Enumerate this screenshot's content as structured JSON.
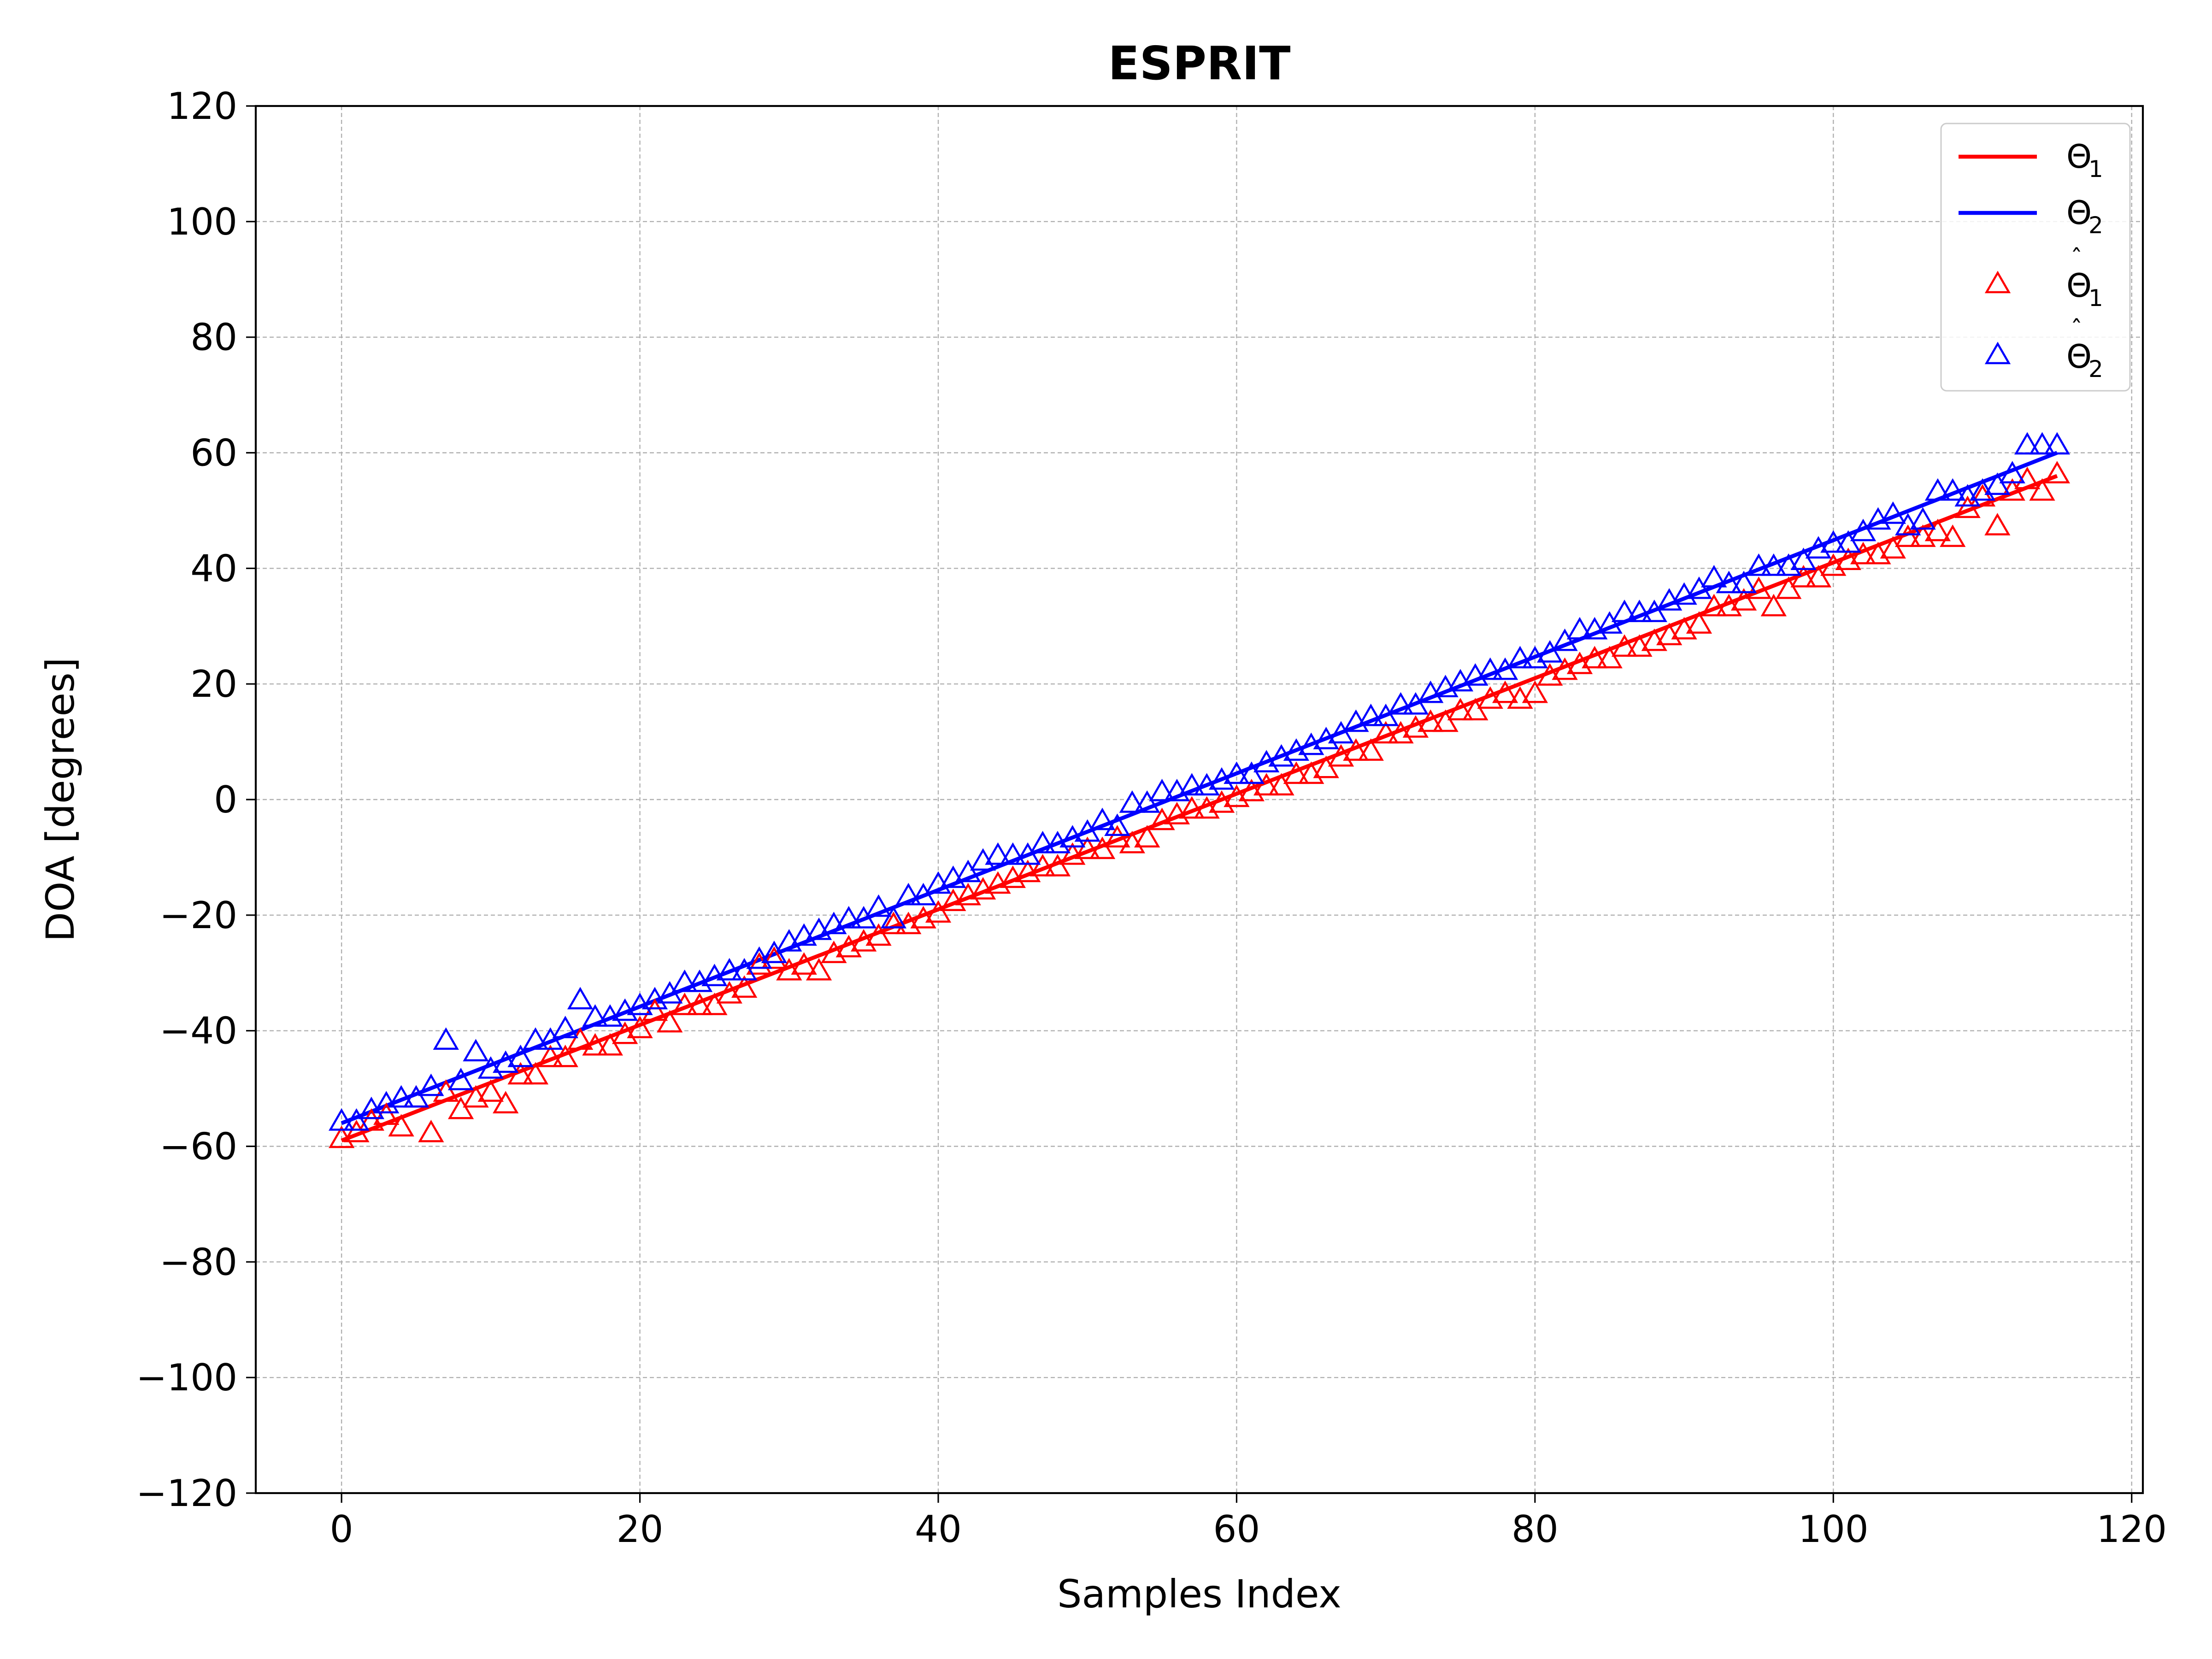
{
  "chart_data": {
    "type": "line",
    "title": "ESPRIT",
    "xlabel": "Samples Index",
    "ylabel": "DOA [degrees]",
    "xlim": [
      -5.75,
      120.75
    ],
    "ylim": [
      -120,
      120
    ],
    "xticks": [
      0,
      20,
      40,
      60,
      80,
      100,
      120
    ],
    "xtick_labels": [
      "0",
      "20",
      "40",
      "60",
      "80",
      "100",
      "120"
    ],
    "yticks": [
      -120,
      -100,
      -80,
      -60,
      -40,
      -20,
      0,
      20,
      40,
      60,
      80,
      100,
      120
    ],
    "ytick_labels": [
      "−120",
      "−100",
      "−80",
      "−60",
      "−40",
      "−20",
      "0",
      "20",
      "40",
      "60",
      "80",
      "100",
      "120"
    ],
    "grid": true,
    "legend_position": "top-right",
    "legend": [
      {
        "main": "Θ",
        "sub": "1",
        "hat": false,
        "kind": "line",
        "color": "#ff0000"
      },
      {
        "main": "Θ",
        "sub": "2",
        "hat": false,
        "kind": "line",
        "color": "#0000ff"
      },
      {
        "main": "Θ",
        "sub": "1",
        "hat": true,
        "kind": "marker",
        "color": "#ff0000"
      },
      {
        "main": "Θ",
        "sub": "2",
        "hat": true,
        "kind": "marker",
        "color": "#0000ff"
      }
    ],
    "series": [
      {
        "name": "Θ₁",
        "kind": "line",
        "color": "#ff0000",
        "x": [
          0,
          115
        ],
        "y": [
          -59,
          56
        ]
      },
      {
        "name": "Θ₂",
        "kind": "line",
        "color": "#0000ff",
        "x": [
          0,
          115
        ],
        "y": [
          -56,
          60
        ]
      },
      {
        "name": "Θ̂₁",
        "kind": "marker",
        "marker": "triangle-open",
        "color": "#ff0000",
        "x": [
          0,
          1,
          2,
          3,
          4,
          5,
          6,
          7,
          8,
          9,
          10,
          11,
          12,
          13,
          14,
          15,
          16,
          17,
          18,
          19,
          20,
          21,
          22,
          23,
          24,
          25,
          26,
          27,
          28,
          29,
          30,
          31,
          32,
          33,
          34,
          35,
          36,
          37,
          38,
          39,
          40,
          41,
          42,
          43,
          44,
          45,
          46,
          47,
          48,
          49,
          50,
          51,
          52,
          53,
          54,
          55,
          56,
          57,
          58,
          59,
          60,
          61,
          62,
          63,
          64,
          65,
          66,
          67,
          68,
          69,
          70,
          71,
          72,
          73,
          74,
          75,
          76,
          77,
          78,
          79,
          80,
          81,
          82,
          83,
          84,
          85,
          86,
          87,
          88,
          89,
          90,
          91,
          92,
          93,
          94,
          95,
          96,
          97,
          98,
          99,
          100,
          101,
          102,
          103,
          104,
          105,
          106,
          107,
          108,
          109,
          110,
          111,
          112,
          113,
          114,
          115
        ],
        "y": [
          -59,
          -58,
          -56,
          -55,
          -57,
          -52,
          -58,
          -51,
          -54,
          -52,
          -51,
          -53,
          -48,
          -48,
          -45,
          -45,
          -42,
          -43,
          -43,
          -41,
          -40,
          -37,
          -39,
          -36,
          -36,
          -36,
          -34,
          -33,
          -29,
          -28,
          -30,
          -29,
          -30,
          -27,
          -26,
          -25,
          -24,
          -22,
          -22,
          -21,
          -20,
          -18,
          -17,
          -16,
          -15,
          -14,
          -13,
          -12,
          -12,
          -10,
          -9,
          -9,
          -7,
          -8,
          -7,
          -4,
          -3,
          -2,
          -2,
          -1,
          0,
          1,
          2,
          2,
          4,
          4,
          5,
          7,
          8,
          8,
          11,
          11,
          12,
          13,
          13,
          15,
          15,
          17,
          18,
          17,
          18,
          21,
          22,
          23,
          24,
          24,
          26,
          26,
          27,
          28,
          29,
          30,
          33,
          33,
          34,
          36,
          33,
          36,
          38,
          38,
          40,
          41,
          42,
          42,
          43,
          45,
          45,
          46,
          45,
          50,
          52,
          47,
          53,
          55,
          53,
          56
        ]
      },
      {
        "name": "Θ̂₂",
        "kind": "marker",
        "marker": "triangle-open",
        "color": "#0000ff",
        "x": [
          0,
          1,
          2,
          3,
          4,
          5,
          6,
          7,
          8,
          9,
          10,
          11,
          12,
          13,
          14,
          15,
          16,
          17,
          18,
          19,
          20,
          21,
          22,
          23,
          24,
          25,
          26,
          27,
          28,
          29,
          30,
          31,
          32,
          33,
          34,
          35,
          36,
          37,
          38,
          39,
          40,
          41,
          42,
          43,
          44,
          45,
          46,
          47,
          48,
          49,
          50,
          51,
          52,
          53,
          54,
          55,
          56,
          57,
          58,
          59,
          60,
          61,
          62,
          63,
          64,
          65,
          66,
          67,
          68,
          69,
          70,
          71,
          72,
          73,
          74,
          75,
          76,
          77,
          78,
          79,
          80,
          81,
          82,
          83,
          84,
          85,
          86,
          87,
          88,
          89,
          90,
          91,
          92,
          93,
          94,
          95,
          96,
          97,
          98,
          99,
          100,
          101,
          102,
          103,
          104,
          105,
          106,
          107,
          108,
          109,
          110,
          111,
          112,
          113,
          114,
          115
        ],
        "y": [
          -56,
          -56,
          -54,
          -53,
          -52,
          -52,
          -50,
          -42,
          -49,
          -44,
          -47,
          -46,
          -45,
          -42,
          -42,
          -40,
          -35,
          -38,
          -38,
          -37,
          -36,
          -35,
          -34,
          -32,
          -32,
          -31,
          -30,
          -30,
          -28,
          -27,
          -25,
          -24,
          -23,
          -22,
          -21,
          -21,
          -19,
          -21,
          -17,
          -17,
          -15,
          -14,
          -13,
          -11,
          -10,
          -10,
          -10,
          -8,
          -8,
          -7,
          -6,
          -4,
          -5,
          -1,
          -1,
          1,
          1,
          2,
          2,
          3,
          4,
          4,
          6,
          7,
          8,
          9,
          10,
          11,
          13,
          14,
          14,
          16,
          16,
          18,
          19,
          20,
          21,
          22,
          22,
          24,
          24,
          25,
          27,
          29,
          29,
          30,
          32,
          32,
          32,
          34,
          35,
          36,
          38,
          37,
          37,
          40,
          40,
          40,
          41,
          43,
          44,
          44,
          46,
          48,
          49,
          47,
          48,
          53,
          53,
          52,
          53,
          54,
          56,
          61,
          61,
          61
        ]
      }
    ]
  }
}
